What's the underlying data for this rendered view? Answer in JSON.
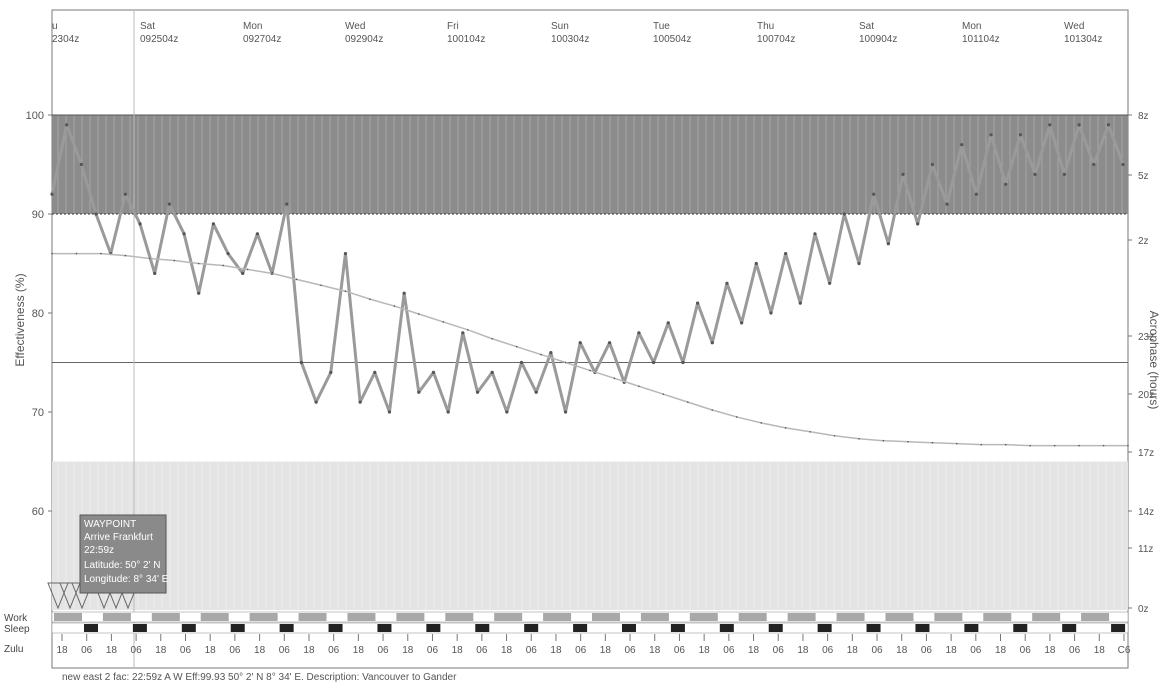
{
  "chart_data": {
    "type": "line",
    "ylabel": "Effectiveness (%)",
    "y2label": "Acrophase (hours)",
    "ylim": [
      50,
      100
    ],
    "yticks": [
      60,
      70,
      80,
      90,
      100
    ],
    "yticks_display": [
      "60",
      "70",
      "80",
      "90",
      "100"
    ],
    "y2ticks": [
      "0z",
      "11z",
      "14z",
      "17z",
      "20z",
      "23z",
      "2z",
      "5z",
      "8z"
    ],
    "date_labels": [
      {
        "day": "u",
        "date": "2304z"
      },
      {
        "day": "Sat",
        "date": "092504z"
      },
      {
        "day": "Mon",
        "date": "092704z"
      },
      {
        "day": "Wed",
        "date": "092904z"
      },
      {
        "day": "Fri",
        "date": "100104z"
      },
      {
        "day": "Sun",
        "date": "100304z"
      },
      {
        "day": "Tue",
        "date": "100504z"
      },
      {
        "day": "Thu",
        "date": "100704z"
      },
      {
        "day": "Sat",
        "date": "100904z"
      },
      {
        "day": "Mon",
        "date": "101104z"
      },
      {
        "day": "Wed",
        "date": "101304z"
      }
    ],
    "reference_lines": [
      90,
      75
    ],
    "zones": [
      {
        "from": 90,
        "to": 100,
        "color": "#8c8c8c"
      },
      {
        "from": 50,
        "to": 65,
        "color": "#e4e4e4"
      }
    ],
    "x_range_days": [
      0,
      22
    ],
    "series": [
      {
        "color": "#9a9a9a",
        "x": [
          0.0,
          0.3,
          0.6,
          0.9,
          1.2,
          1.5,
          1.8,
          2.1,
          2.4,
          2.7,
          3.0,
          3.3,
          3.6,
          3.9,
          4.2,
          4.5,
          4.8,
          5.1,
          5.4,
          5.7,
          6.0,
          6.3,
          6.6,
          6.9,
          7.2,
          7.5,
          7.8,
          8.1,
          8.4,
          8.7,
          9.0,
          9.3,
          9.6,
          9.9,
          10.2,
          10.5,
          10.8,
          11.1,
          11.4,
          11.7,
          12.0,
          12.3,
          12.6,
          12.9,
          13.2,
          13.5,
          13.8,
          14.1,
          14.4,
          14.7,
          15.0,
          15.3,
          15.6,
          15.9,
          16.2,
          16.5,
          16.8,
          17.1,
          17.4,
          17.7,
          18.0,
          18.3,
          18.6,
          18.9,
          19.2,
          19.5,
          19.8,
          20.1,
          20.4,
          20.7,
          21.0,
          21.3,
          21.6,
          21.9
        ],
        "values": [
          92,
          99,
          95,
          90,
          86,
          92,
          89,
          84,
          91,
          88,
          82,
          89,
          86,
          84,
          88,
          84,
          91,
          75,
          71,
          74,
          86,
          71,
          74,
          70,
          82,
          72,
          74,
          70,
          78,
          72,
          74,
          70,
          75,
          72,
          76,
          70,
          77,
          74,
          77,
          73,
          78,
          75,
          79,
          75,
          81,
          77,
          83,
          79,
          85,
          80,
          86,
          81,
          88,
          83,
          90,
          85,
          92,
          87,
          94,
          89,
          95,
          91,
          97,
          92,
          98,
          93,
          98,
          94,
          99,
          94,
          99,
          95,
          99,
          95
        ]
      },
      {
        "color": "#b8b8b8",
        "x": [
          0.0,
          0.5,
          1.0,
          1.5,
          2.0,
          2.5,
          3.0,
          3.5,
          4.0,
          4.5,
          5.0,
          5.5,
          6.0,
          6.5,
          7.0,
          7.5,
          8.0,
          8.5,
          9.0,
          9.5,
          10.0,
          10.5,
          11.0,
          11.5,
          12.0,
          12.5,
          13.0,
          13.5,
          14.0,
          14.5,
          15.0,
          15.5,
          16.0,
          16.5,
          17.0,
          17.5,
          18.0,
          18.5,
          19.0,
          19.5,
          20.0,
          20.5,
          21.0,
          21.5,
          22.0
        ],
        "values": [
          86,
          86,
          86,
          85.8,
          85.5,
          85.3,
          85,
          84.8,
          84.4,
          84,
          83.4,
          82.8,
          82.2,
          81.4,
          80.7,
          79.9,
          79.1,
          78.3,
          77.4,
          76.6,
          75.8,
          75,
          74.2,
          73.4,
          72.6,
          71.8,
          71.0,
          70.2,
          69.5,
          68.9,
          68.4,
          68.0,
          67.6,
          67.3,
          67.1,
          67.0,
          66.9,
          66.8,
          66.7,
          66.7,
          66.6,
          66.6,
          66.6,
          66.6,
          66.6
        ]
      }
    ],
    "row_labels": {
      "work": "Work",
      "sleep": "Sleep",
      "zulu": "Zulu"
    },
    "zulu_ticks": [
      "18",
      "06",
      "18",
      "06",
      "18",
      "06",
      "18",
      "06",
      "18",
      "06",
      "18",
      "06",
      "18",
      "06",
      "18",
      "06",
      "18",
      "06",
      "18",
      "06",
      "18",
      "06",
      "18",
      "06",
      "18",
      "06",
      "18",
      "06",
      "18",
      "06",
      "18",
      "06",
      "18",
      "06",
      "18",
      "06",
      "18",
      "06",
      "18",
      "06",
      "18",
      "06",
      "18",
      "C6"
    ],
    "waypoint": {
      "title": "WAYPOINT",
      "line1": "Arrive Frankfurt",
      "line2": "22:59z",
      "line3": "Latitude: 50° 2' N",
      "line4": "Longitude: 8° 34' E"
    },
    "footer": "new east 2 fac: 22:59z A W Eff:99.93 50° 2' N 8° 34' E. Description: Vancouver to Gander"
  }
}
